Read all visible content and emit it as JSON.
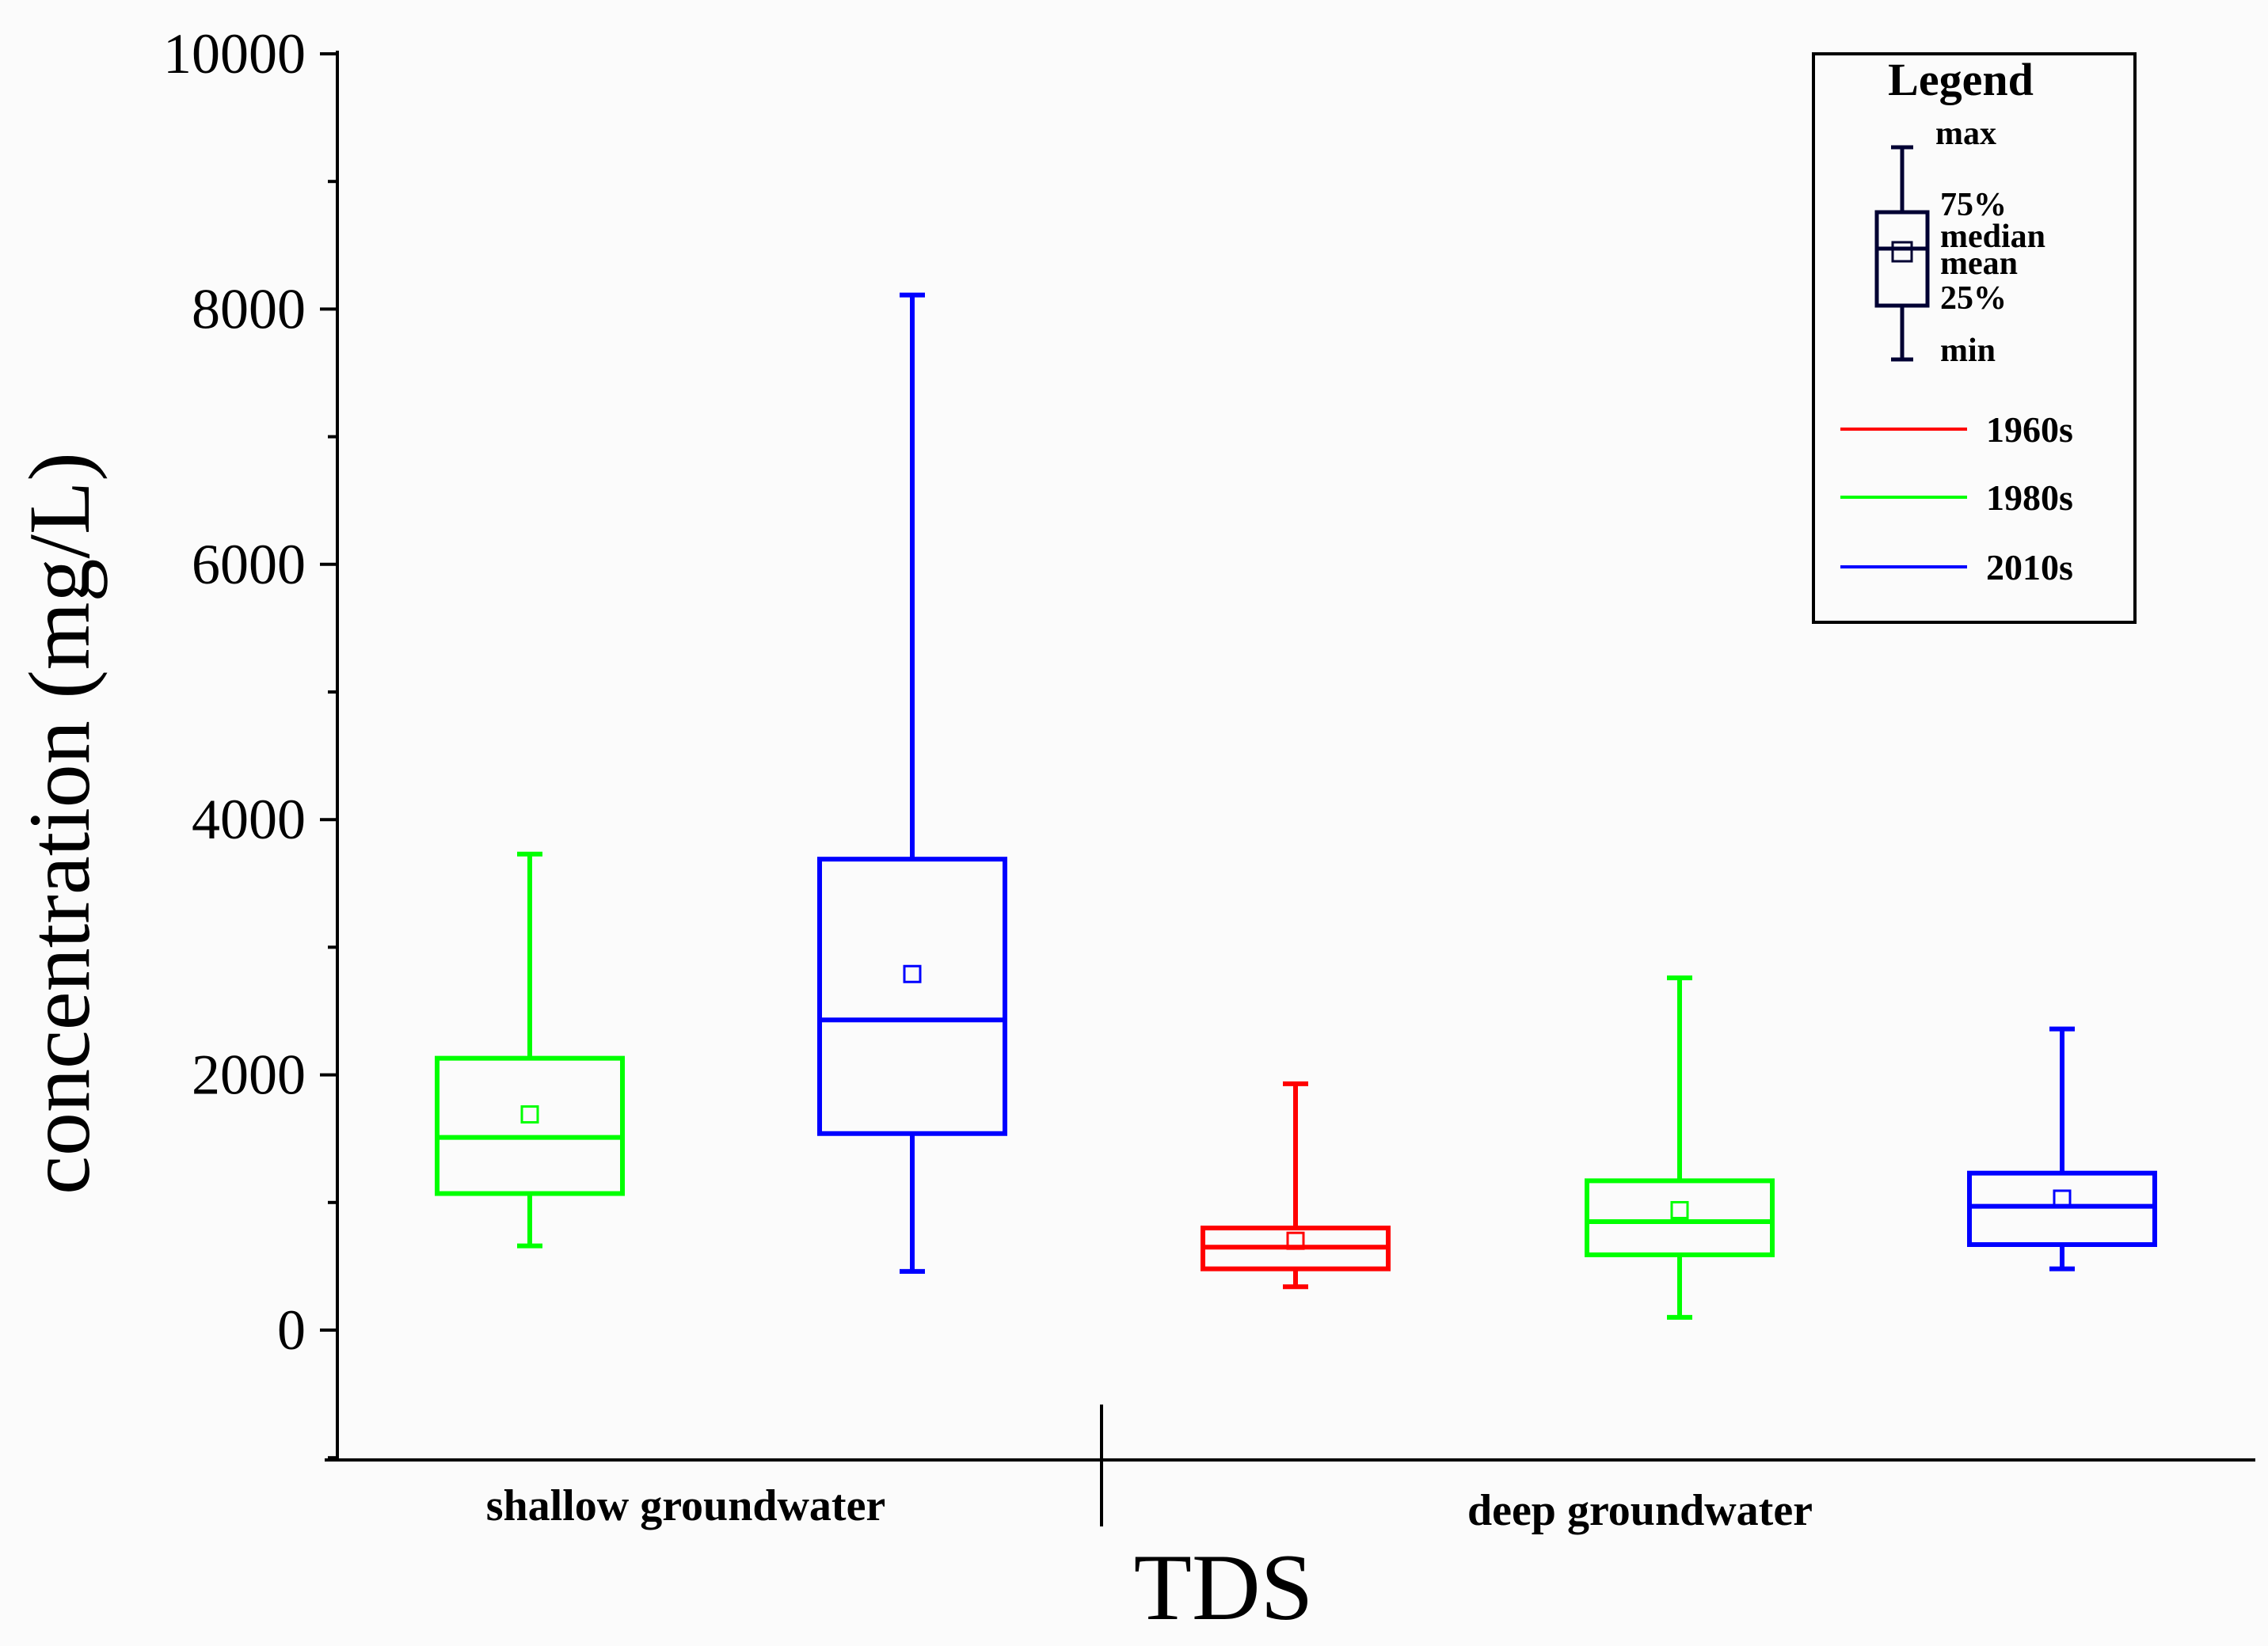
{
  "chart_data": {
    "type": "box",
    "xlabel": "TDS",
    "ylabel": "concentration (mg/L)",
    "ylim": [
      -1000,
      10000
    ],
    "yticks": [
      0,
      2000,
      4000,
      6000,
      8000,
      10000
    ],
    "yticks_minor": [
      -1000,
      1000,
      3000,
      5000,
      7000,
      9000
    ],
    "groups": [
      "shallow groundwater",
      "deep groundwater"
    ],
    "legend": {
      "title": "Legend",
      "stats_labels": {
        "max": "max",
        "q3": "75%",
        "median": "median",
        "mean": "mean",
        "q1": "25%",
        "min": "min"
      },
      "series": [
        {
          "name": "1960s",
          "color": "#ff0000"
        },
        {
          "name": "1980s",
          "color": "#00ff00"
        },
        {
          "name": "2010s",
          "color": "#0000ff"
        }
      ],
      "placement": "top-right"
    },
    "boxes": [
      {
        "group": "shallow groundwater",
        "series": "1980s",
        "min": 660,
        "q1": 1070,
        "median": 1510,
        "mean": 1690,
        "q3": 2130,
        "max": 3730
      },
      {
        "group": "shallow groundwater",
        "series": "2010s",
        "min": 460,
        "q1": 1540,
        "median": 2430,
        "mean": 2790,
        "q3": 3690,
        "max": 8110
      },
      {
        "group": "deep groundwater",
        "series": "1960s",
        "min": 340,
        "q1": 480,
        "median": 650,
        "mean": 700,
        "q3": 800,
        "max": 1930
      },
      {
        "group": "deep groundwater",
        "series": "1980s",
        "min": 100,
        "q1": 590,
        "median": 850,
        "mean": 940,
        "q3": 1170,
        "max": 2760
      },
      {
        "group": "deep groundwater",
        "series": "2010s",
        "min": 480,
        "q1": 670,
        "median": 970,
        "mean": 1030,
        "q3": 1230,
        "max": 2360
      }
    ]
  }
}
